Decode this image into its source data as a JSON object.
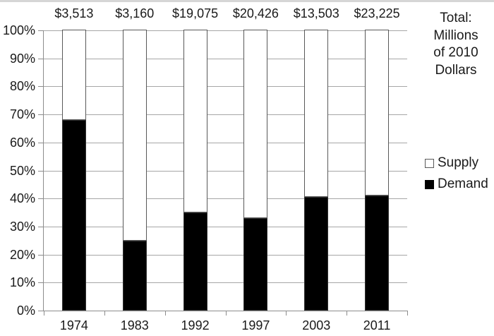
{
  "chart_data": {
    "type": "bar",
    "subtype": "100-percent-stacked-column",
    "title": "",
    "categories": [
      "1974",
      "1983",
      "1992",
      "1997",
      "2003",
      "2011"
    ],
    "bar_total_labels": [
      "$3,513",
      "$3,160",
      "$19,075",
      "$20,426",
      "$13,503",
      "$23,225"
    ],
    "series": [
      {
        "name": "Supply",
        "color": "#ffffff",
        "values": [
          32,
          75,
          65,
          67,
          59.5,
          59
        ]
      },
      {
        "name": "Demand",
        "color": "#000000",
        "values": [
          68,
          25,
          35,
          33,
          40.5,
          41
        ]
      }
    ],
    "y_axis": {
      "tick_labels": [
        "100%",
        "90%",
        "80%",
        "70%",
        "60%",
        "50%",
        "40%",
        "30%",
        "20%",
        "10%",
        "0%"
      ],
      "min": 0,
      "max": 100,
      "unit": "%"
    },
    "grid": true,
    "legend_position": "right",
    "annotation": "Total: Millions of 2010 Dollars"
  },
  "side_panel": {
    "note_lines": [
      "Total:",
      "Millions",
      "of 2010",
      "Dollars"
    ],
    "legend": [
      {
        "label": "Supply",
        "swatch_fill": "#ffffff",
        "swatch_border": "#595959"
      },
      {
        "label": "Demand",
        "swatch_fill": "#000000",
        "swatch_border": "#000000"
      }
    ]
  },
  "colors": {
    "background": "#ffffff",
    "grid": "#a6a6a6",
    "axis": "#8c8c8c",
    "bar_border": "#595959",
    "demand_fill": "#000000",
    "supply_fill": "#ffffff",
    "text": "#1a1a1a",
    "top_strip": "#d6d6d6"
  }
}
